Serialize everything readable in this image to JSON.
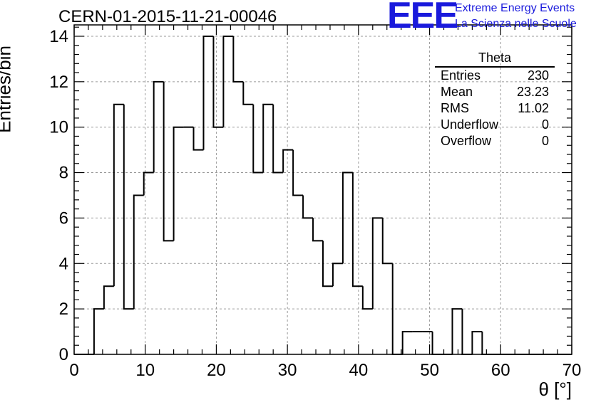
{
  "header": {
    "title": "CERN-01-2015-11-21-00046",
    "logo_text": "EEE",
    "logo_line1": "Extreme Energy Events",
    "logo_line2": "La Scienza nelle Scuole"
  },
  "stats_box": {
    "title": "Theta",
    "rows": [
      {
        "label": "Entries",
        "value": "230"
      },
      {
        "label": "Mean",
        "value": "23.23"
      },
      {
        "label": "RMS",
        "value": "11.02"
      },
      {
        "label": "Underflow",
        "value": "0"
      },
      {
        "label": "Overflow",
        "value": "0"
      }
    ]
  },
  "chart_data": {
    "type": "bar",
    "title": "CERN-01-2015-11-21-00046",
    "xlabel": "θ [°]",
    "ylabel": "Entries/bin",
    "xlim": [
      0,
      70
    ],
    "ylim": [
      0,
      14.5
    ],
    "grid": true,
    "bin_width": 1.4,
    "bin_start": 0,
    "x_ticks": [
      0,
      10,
      20,
      30,
      40,
      50,
      60,
      70
    ],
    "y_ticks": [
      0,
      2,
      4,
      6,
      8,
      10,
      12,
      14
    ],
    "values": [
      0,
      0,
      2,
      3,
      11,
      2,
      7,
      8,
      12,
      5,
      10,
      10,
      9,
      14,
      10,
      14,
      12,
      11,
      8,
      11,
      8,
      9,
      7,
      6,
      5,
      3,
      4,
      8,
      3,
      2,
      6,
      4,
      0,
      1,
      1,
      1,
      0,
      0,
      2,
      0,
      1,
      0,
      0,
      0,
      0,
      0,
      0,
      0,
      0,
      0
    ],
    "color": "#000000"
  }
}
